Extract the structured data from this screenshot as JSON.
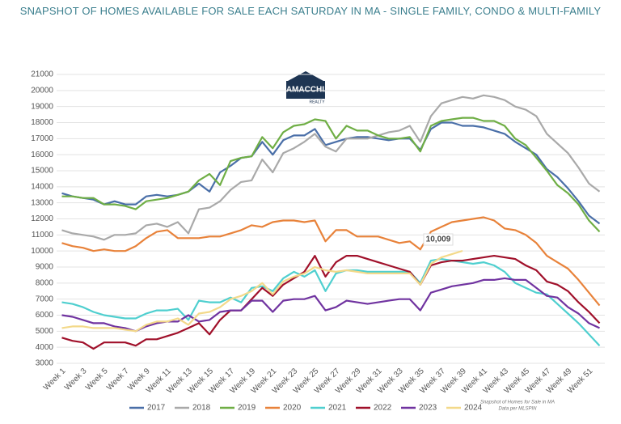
{
  "chart_data": {
    "type": "line",
    "title": "SNAPSHOT OF HOMES AVAILABLE FOR SALE EACH SATURDAY IN MA - SINGLE FAMILY, CONDO & MULTI-FAMILY",
    "logo": {
      "name": "LAMACCHIA",
      "sub": "REALTY"
    },
    "source": [
      "Snapshot of Homes for Sale in MA",
      "Data per MLSPIN"
    ],
    "categories": [
      "Week 1",
      null,
      "Week 3",
      null,
      "Week 5",
      null,
      "Week 7",
      null,
      "Week 9",
      null,
      "Week 11",
      null,
      "Week 13",
      null,
      "Week 15",
      null,
      "Week 17",
      null,
      "Week 19",
      null,
      "Week 21",
      null,
      "Week 23",
      null,
      "Week 25",
      null,
      "Week 27",
      null,
      "Week 29",
      null,
      "Week 31",
      null,
      "Week 33",
      null,
      "Week 35",
      null,
      "Week 37",
      null,
      "Week 39",
      null,
      "Week 41",
      null,
      "Week 43",
      null,
      "Week 45",
      null,
      "Week 47",
      null,
      "Week 49",
      null,
      "Week 51",
      null
    ],
    "ylim": [
      3000,
      21000
    ],
    "yticks": [
      3000,
      4000,
      5000,
      6000,
      7000,
      8000,
      9000,
      10000,
      11000,
      12000,
      13000,
      14000,
      15000,
      16000,
      17000,
      18000,
      19000,
      20000,
      21000
    ],
    "grid": true,
    "legend": "bottom",
    "series": [
      {
        "name": "2017",
        "color": "#4a6fa8",
        "values": [
          13600,
          13400,
          13300,
          13200,
          12900,
          13100,
          12900,
          12900,
          13400,
          13500,
          13400,
          13500,
          13700,
          14200,
          13700,
          14900,
          15300,
          15800,
          15900,
          16800,
          16000,
          16900,
          17200,
          17200,
          17600,
          16600,
          16800,
          17000,
          17100,
          17100,
          17000,
          16900,
          17000,
          17000,
          16300,
          17600,
          18000,
          18000,
          17800,
          17800,
          17700,
          17500,
          17300,
          16800,
          16400,
          16000,
          15100,
          14600,
          13900,
          13100,
          12200,
          11700
        ]
      },
      {
        "name": "2018",
        "color": "#a9a9a9",
        "values": [
          11300,
          11100,
          11000,
          10900,
          10700,
          11000,
          11000,
          11100,
          11600,
          11700,
          11500,
          11800,
          11100,
          12600,
          12700,
          13100,
          13800,
          14300,
          14400,
          15700,
          14900,
          16100,
          16400,
          16800,
          17300,
          16500,
          16200,
          17000,
          17000,
          17000,
          17200,
          17400,
          17500,
          17800,
          16800,
          18400,
          19200,
          19400,
          19600,
          19500,
          19700,
          19600,
          19400,
          19000,
          18800,
          18400,
          17300,
          16700,
          16100,
          15200,
          14200,
          13700
        ]
      },
      {
        "name": "2019",
        "color": "#6fae45",
        "values": [
          13400,
          13400,
          13300,
          13300,
          12900,
          12900,
          12800,
          12600,
          13100,
          13200,
          13300,
          13500,
          13700,
          14400,
          14800,
          14100,
          15600,
          15800,
          15900,
          17100,
          16400,
          17400,
          17800,
          17900,
          18200,
          18100,
          17000,
          17800,
          17500,
          17500,
          17200,
          17000,
          17000,
          17100,
          16200,
          17800,
          18100,
          18200,
          18300,
          18300,
          18100,
          18100,
          17800,
          17000,
          16600,
          15800,
          15000,
          14100,
          13600,
          12900,
          11900,
          11200
        ]
      },
      {
        "name": "2020",
        "color": "#e8823a",
        "values": [
          10500,
          10300,
          10200,
          10000,
          10100,
          10000,
          10000,
          10300,
          10800,
          11200,
          11300,
          10800,
          10800,
          10800,
          10900,
          10900,
          11100,
          11300,
          11600,
          11500,
          11800,
          11900,
          11900,
          11800,
          11900,
          10600,
          11300,
          11300,
          10900,
          10900,
          10900,
          10700,
          10500,
          10600,
          10100,
          11200,
          11500,
          11800,
          11900,
          12000,
          12100,
          11900,
          11400,
          11300,
          11000,
          10500,
          9700,
          9300,
          8900,
          8200,
          7400,
          6600
        ]
      },
      {
        "name": "2021",
        "color": "#4fcfcf",
        "values": [
          6800,
          6700,
          6500,
          6200,
          6000,
          5900,
          5800,
          5800,
          6100,
          6300,
          6300,
          6400,
          5700,
          6900,
          6800,
          6800,
          7100,
          6800,
          7700,
          7800,
          7500,
          8300,
          8700,
          8400,
          8800,
          7500,
          8600,
          8800,
          8800,
          8700,
          8700,
          8700,
          8700,
          8700,
          8000,
          9400,
          9500,
          9400,
          9300,
          9200,
          9300,
          9100,
          8700,
          8000,
          7700,
          7400,
          7300,
          6700,
          6100,
          5500,
          4800,
          4100
        ]
      },
      {
        "name": "2022",
        "color": "#a0102a",
        "values": [
          4600,
          4400,
          4300,
          3900,
          4300,
          4300,
          4300,
          4100,
          4500,
          4500,
          4700,
          4900,
          5200,
          5500,
          4800,
          5700,
          6300,
          6300,
          7000,
          7700,
          7200,
          7900,
          8300,
          8700,
          9700,
          8400,
          9300,
          9700,
          9700,
          9500,
          9300,
          9100,
          8900,
          8700,
          7900,
          9100,
          9300,
          9400,
          9400,
          9500,
          9600,
          9700,
          9600,
          9500,
          9100,
          8800,
          8100,
          7900,
          7500,
          6800,
          6200,
          5500
        ]
      },
      {
        "name": "2023",
        "color": "#7033a0",
        "values": [
          6000,
          5900,
          5700,
          5500,
          5500,
          5300,
          5200,
          5000,
          5300,
          5500,
          5600,
          5600,
          6000,
          5600,
          5700,
          6200,
          6300,
          6300,
          6900,
          6900,
          6200,
          6900,
          7000,
          7000,
          7200,
          6300,
          6500,
          6900,
          6800,
          6700,
          6800,
          6900,
          7000,
          7000,
          6300,
          7400,
          7600,
          7800,
          7900,
          8000,
          8200,
          8200,
          8300,
          8200,
          8200,
          7700,
          7200,
          7100,
          6500,
          6100,
          5500,
          5200
        ]
      },
      {
        "name": "2024",
        "color": "#f3d98a",
        "values": [
          5200,
          5300,
          5300,
          5200,
          5200,
          5200,
          5100,
          5000,
          5400,
          5600,
          5600,
          5800,
          5400,
          6100,
          6200,
          6500,
          7000,
          7200,
          7500,
          8000,
          7300,
          8100,
          8400,
          8600,
          9000,
          8800,
          8700,
          8800,
          8700,
          8600,
          8600,
          8600,
          8600,
          8600,
          7900,
          9200,
          9600,
          9800,
          10009,
          null,
          null,
          null,
          null,
          null,
          null,
          null,
          null,
          null,
          null,
          null,
          null,
          null
        ],
        "value_labels": [
          null,
          null,
          null,
          null,
          null,
          null,
          null,
          null,
          null,
          null,
          null,
          null,
          null,
          null,
          null,
          null,
          null,
          null,
          null,
          null,
          null,
          null,
          null,
          null,
          null,
          null,
          null,
          null,
          null,
          null,
          null,
          null,
          null,
          null,
          null,
          null,
          null,
          null,
          "10,009",
          null,
          null,
          null,
          null,
          null,
          null,
          null,
          null,
          null,
          null,
          null,
          null,
          null
        ]
      }
    ]
  }
}
